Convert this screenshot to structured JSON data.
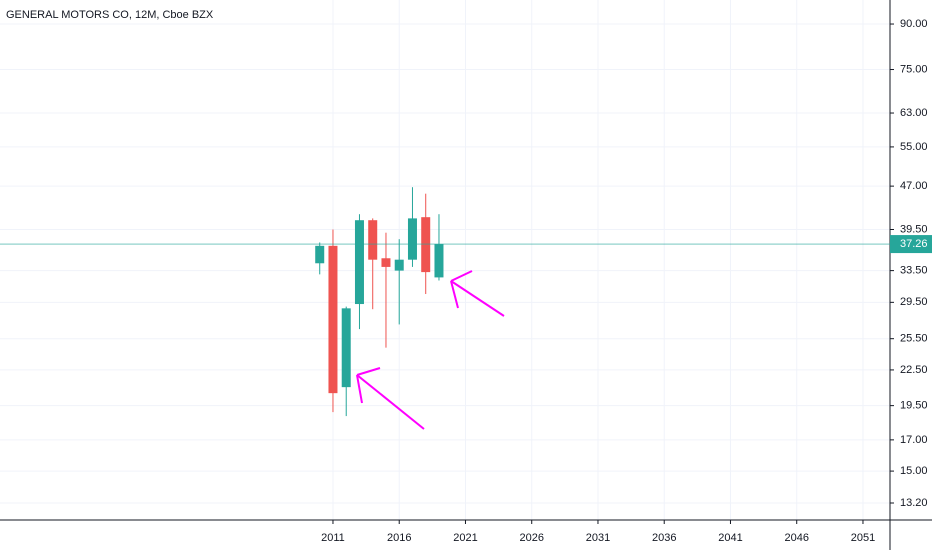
{
  "chart_data": {
    "type": "candlestick",
    "title": "GENERAL MOTORS CO, 12M, Cboe BZX",
    "x": [
      2010,
      2011,
      2012,
      2013,
      2014,
      2015,
      2016,
      2017,
      2018,
      2019
    ],
    "open": [
      34.5,
      37.0,
      21.0,
      29.3,
      41.0,
      35.2,
      33.5,
      35.0,
      41.5,
      32.6
    ],
    "high": [
      37.5,
      39.5,
      29.0,
      42.0,
      41.3,
      39.0,
      38.0,
      46.8,
      45.6,
      42.0
    ],
    "low": [
      33.0,
      19.0,
      18.7,
      26.5,
      28.7,
      24.6,
      27.0,
      34.0,
      30.5,
      32.2
    ],
    "close": [
      37.0,
      20.5,
      28.8,
      41.0,
      35.0,
      34.0,
      35.0,
      41.3,
      33.3,
      37.26
    ],
    "up_color": "#26a69a",
    "down_color": "#ef5350",
    "xlim": [
      1985.87,
      2053.04
    ],
    "xticks": [
      2011,
      2016,
      2021,
      2026,
      2031,
      2036,
      2041,
      2046,
      2051
    ],
    "ylim": [
      12.33,
      99.1
    ],
    "log_y": true,
    "yticks": [
      {
        "value": 90,
        "label": "90.00"
      },
      {
        "value": 75,
        "label": "75.00"
      },
      {
        "value": 63,
        "label": "63.00"
      },
      {
        "value": 55,
        "label": "55.00"
      },
      {
        "value": 47,
        "label": "47.00"
      },
      {
        "value": 39.5,
        "label": "39.50"
      },
      {
        "value": 33.5,
        "label": "33.50"
      },
      {
        "value": 29.5,
        "label": "29.50"
      },
      {
        "value": 25.5,
        "label": "25.50"
      },
      {
        "value": 22.5,
        "label": "22.50"
      },
      {
        "value": 19.5,
        "label": "19.50"
      },
      {
        "value": 17,
        "label": "17.00"
      },
      {
        "value": 15,
        "label": "15.00"
      },
      {
        "value": 13.2,
        "label": "13.20"
      }
    ],
    "last_price": 37.26,
    "grid": true
  }
}
